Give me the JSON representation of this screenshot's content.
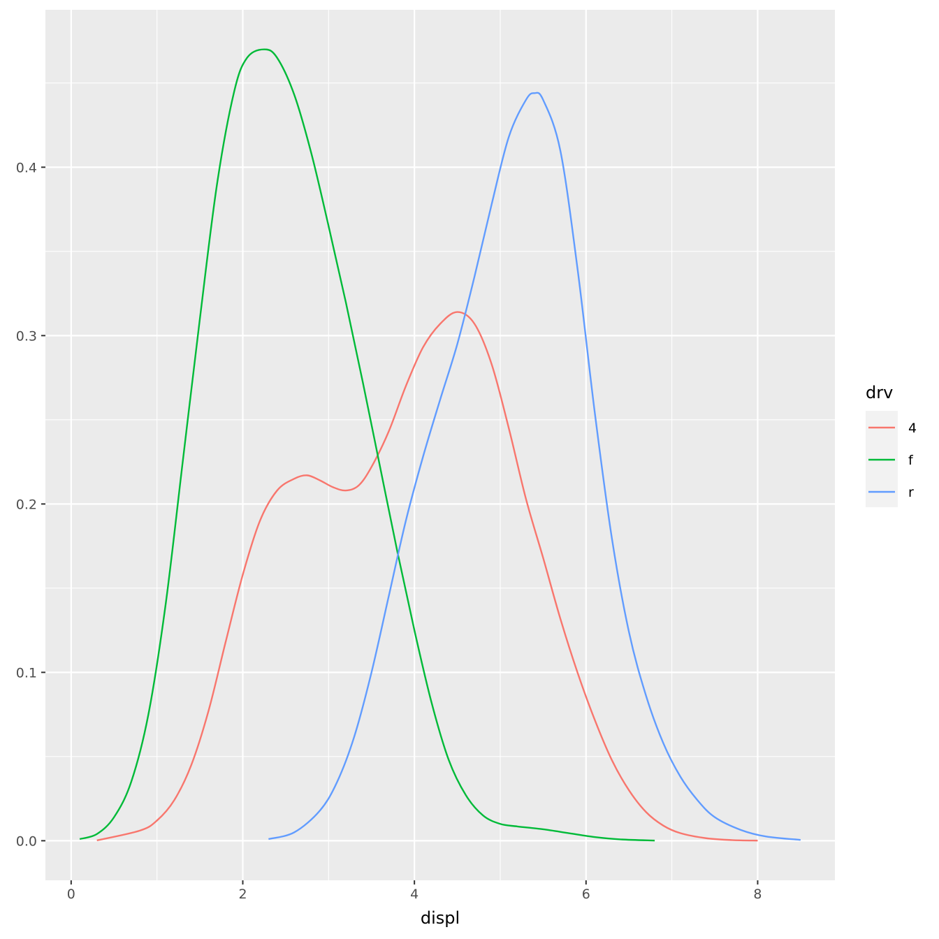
{
  "chart_data": {
    "type": "line",
    "xlabel": "displ",
    "ylabel": "",
    "xlim": [
      -0.3,
      8.9
    ],
    "ylim": [
      -0.0235,
      0.4935
    ],
    "xticks": [
      0,
      2,
      4,
      6,
      8
    ],
    "xtick_labels": [
      "0",
      "2",
      "4",
      "6",
      "8"
    ],
    "yticks": [
      0.0,
      0.1,
      0.2,
      0.3,
      0.4
    ],
    "ytick_labels": [
      "0.0",
      "0.1",
      "0.2",
      "0.3",
      "0.4"
    ],
    "grid": true,
    "legend": {
      "title": "drv",
      "position": "right"
    },
    "series": [
      {
        "name": "4",
        "color": "#F8766D",
        "points": [
          [
            0.3,
            0.0002
          ],
          [
            0.8,
            0.006
          ],
          [
            1.0,
            0.012
          ],
          [
            1.2,
            0.024
          ],
          [
            1.4,
            0.045
          ],
          [
            1.6,
            0.077
          ],
          [
            1.8,
            0.118
          ],
          [
            2.0,
            0.158
          ],
          [
            2.2,
            0.19
          ],
          [
            2.4,
            0.208
          ],
          [
            2.6,
            0.215
          ],
          [
            2.75,
            0.217
          ],
          [
            2.9,
            0.214
          ],
          [
            3.05,
            0.21
          ],
          [
            3.2,
            0.208
          ],
          [
            3.35,
            0.211
          ],
          [
            3.5,
            0.222
          ],
          [
            3.7,
            0.243
          ],
          [
            3.9,
            0.27
          ],
          [
            4.1,
            0.293
          ],
          [
            4.3,
            0.307
          ],
          [
            4.5,
            0.314
          ],
          [
            4.7,
            0.307
          ],
          [
            4.9,
            0.283
          ],
          [
            5.1,
            0.245
          ],
          [
            5.3,
            0.203
          ],
          [
            5.5,
            0.168
          ],
          [
            5.7,
            0.132
          ],
          [
            5.9,
            0.1
          ],
          [
            6.1,
            0.072
          ],
          [
            6.3,
            0.048
          ],
          [
            6.5,
            0.03
          ],
          [
            6.7,
            0.017
          ],
          [
            6.9,
            0.009
          ],
          [
            7.1,
            0.0045
          ],
          [
            7.4,
            0.0015
          ],
          [
            7.7,
            0.0004
          ],
          [
            8.0,
            0.0001
          ]
        ]
      },
      {
        "name": "f",
        "color": "#00BA38",
        "points": [
          [
            0.1,
            0.001
          ],
          [
            0.3,
            0.004
          ],
          [
            0.5,
            0.014
          ],
          [
            0.7,
            0.035
          ],
          [
            0.9,
            0.075
          ],
          [
            1.1,
            0.14
          ],
          [
            1.3,
            0.225
          ],
          [
            1.5,
            0.31
          ],
          [
            1.7,
            0.39
          ],
          [
            1.9,
            0.445
          ],
          [
            2.05,
            0.465
          ],
          [
            2.25,
            0.47
          ],
          [
            2.4,
            0.465
          ],
          [
            2.6,
            0.443
          ],
          [
            2.8,
            0.408
          ],
          [
            3.0,
            0.365
          ],
          [
            3.2,
            0.32
          ],
          [
            3.4,
            0.272
          ],
          [
            3.6,
            0.222
          ],
          [
            3.8,
            0.172
          ],
          [
            4.0,
            0.125
          ],
          [
            4.2,
            0.082
          ],
          [
            4.4,
            0.048
          ],
          [
            4.6,
            0.027
          ],
          [
            4.8,
            0.015
          ],
          [
            5.0,
            0.01
          ],
          [
            5.2,
            0.0085
          ],
          [
            5.5,
            0.0068
          ],
          [
            5.8,
            0.0045
          ],
          [
            6.1,
            0.0022
          ],
          [
            6.4,
            0.0008
          ],
          [
            6.8,
            0.0001
          ]
        ]
      },
      {
        "name": "r",
        "color": "#619CFF",
        "points": [
          [
            2.3,
            0.001
          ],
          [
            2.6,
            0.005
          ],
          [
            2.9,
            0.018
          ],
          [
            3.1,
            0.035
          ],
          [
            3.3,
            0.062
          ],
          [
            3.5,
            0.1
          ],
          [
            3.7,
            0.145
          ],
          [
            3.9,
            0.19
          ],
          [
            4.1,
            0.228
          ],
          [
            4.3,
            0.262
          ],
          [
            4.5,
            0.295
          ],
          [
            4.7,
            0.335
          ],
          [
            4.9,
            0.378
          ],
          [
            5.1,
            0.418
          ],
          [
            5.3,
            0.44
          ],
          [
            5.4,
            0.444
          ],
          [
            5.5,
            0.44
          ],
          [
            5.7,
            0.41
          ],
          [
            5.9,
            0.34
          ],
          [
            6.1,
            0.255
          ],
          [
            6.3,
            0.18
          ],
          [
            6.5,
            0.124
          ],
          [
            6.7,
            0.086
          ],
          [
            6.9,
            0.058
          ],
          [
            7.1,
            0.038
          ],
          [
            7.3,
            0.024
          ],
          [
            7.5,
            0.014
          ],
          [
            7.8,
            0.0065
          ],
          [
            8.1,
            0.0025
          ],
          [
            8.5,
            0.0005
          ]
        ]
      }
    ]
  }
}
